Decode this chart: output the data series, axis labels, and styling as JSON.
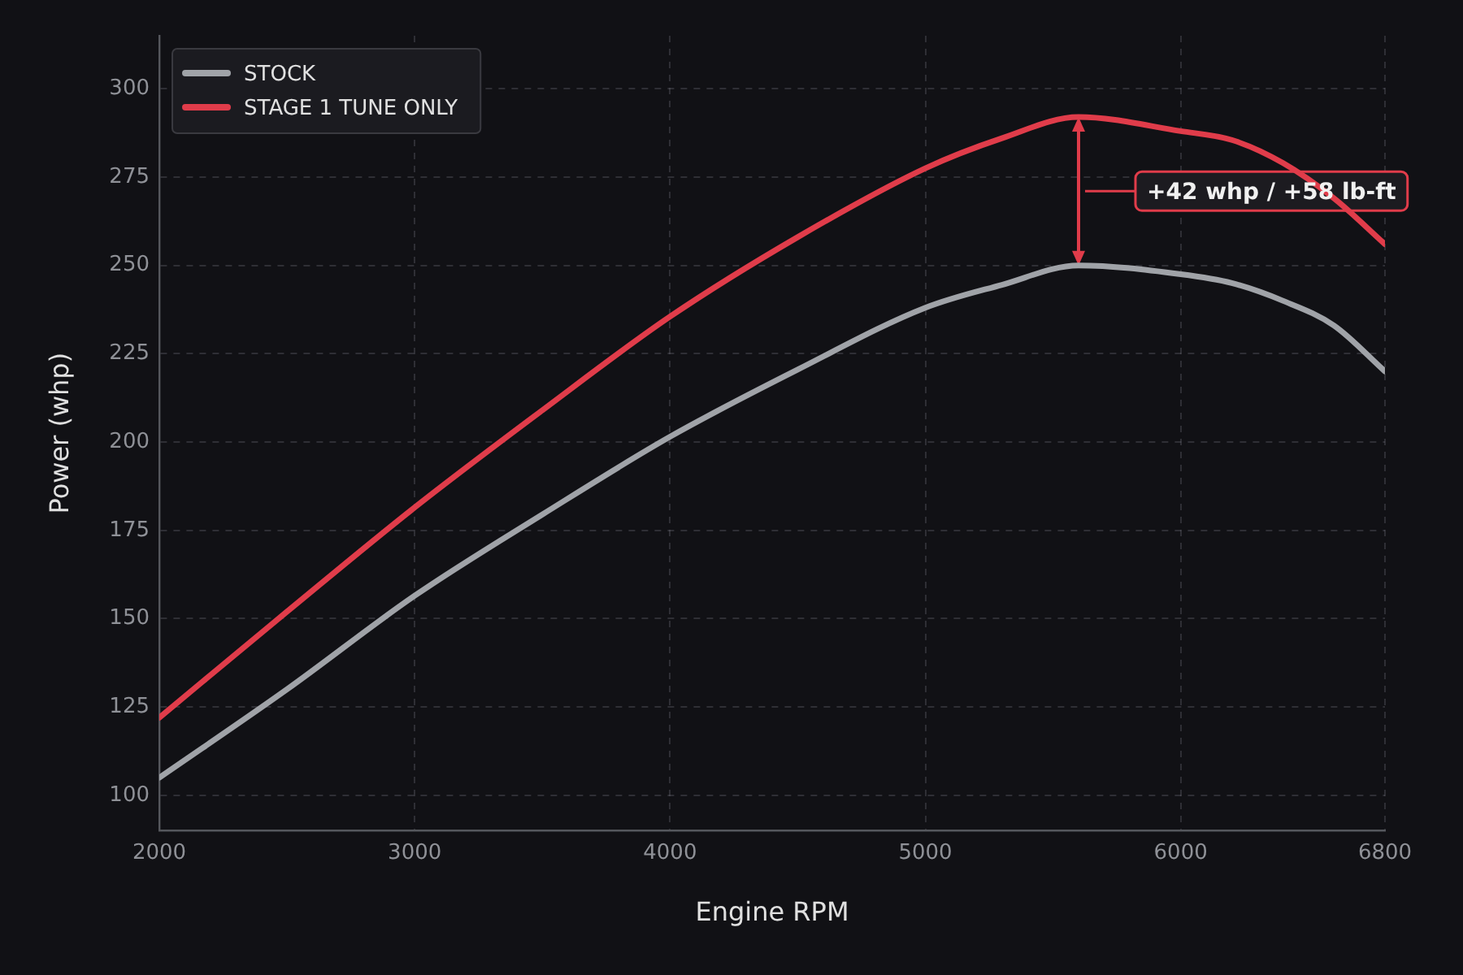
{
  "chart_data": {
    "type": "line",
    "xlabel": "Engine RPM",
    "ylabel": "Power (whp)",
    "x": [
      2000,
      2500,
      3000,
      3500,
      4000,
      4500,
      5000,
      5300,
      5600,
      6000,
      6200,
      6400,
      6600,
      6800
    ],
    "series": [
      {
        "name": "STOCK",
        "color": "#a0a3a8",
        "values": [
          105,
          130,
          156.5,
          179.5,
          201.5,
          220.5,
          238,
          244.5,
          250,
          247.5,
          245,
          240,
          233,
          220
        ]
      },
      {
        "name": "STAGE 1 TUNE ONLY",
        "color": "#e03c4a",
        "values": [
          122,
          152,
          181.5,
          209,
          235.5,
          258,
          277.5,
          286,
          292,
          288,
          285.5,
          279,
          269,
          256
        ]
      }
    ],
    "xlim": [
      2000,
      6800
    ],
    "xticks": [
      2000,
      3000,
      4000,
      5000,
      6000,
      6800
    ],
    "ylim": [
      90,
      315
    ],
    "yticks": [
      100,
      125,
      150,
      175,
      200,
      225,
      250,
      275,
      300
    ],
    "grid": true,
    "legend": "top left",
    "marker": "none",
    "line_style": "solid",
    "annotations": [
      "+42 whp / +58 lb-ft"
    ]
  }
}
